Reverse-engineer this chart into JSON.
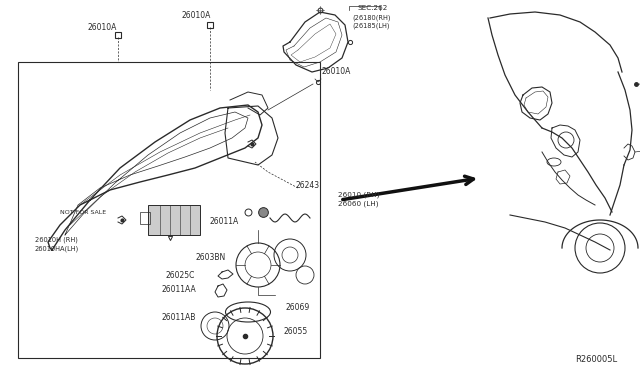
{
  "bg_color": "#ffffff",
  "line_color": "#2a2a2a",
  "fig_width": 6.4,
  "fig_height": 3.72,
  "dpi": 100,
  "diagram_ref": "R260005L",
  "sec262_label": "SEC.262\n(26180(RH)\n(26185(LH)",
  "label_26010A_1": "26010A",
  "label_26010A_2": "26010A",
  "label_26010A_3": "26010A",
  "label_26243": "26243",
  "label_notforsale": "NOT FOR SALE",
  "label_26010H": "26010H (RH)",
  "label_26010HA": "26010HA(LH)",
  "label_26011A": "26011A",
  "label_26038N": "2603BN",
  "label_26025C": "26025C",
  "label_26011AA": "26011AA",
  "label_26011AB": "26011AB",
  "label_26069": "26069",
  "label_26055": "26055",
  "label_26010rh": "26010 (RH)",
  "label_26060lh": "26060 (LH)"
}
